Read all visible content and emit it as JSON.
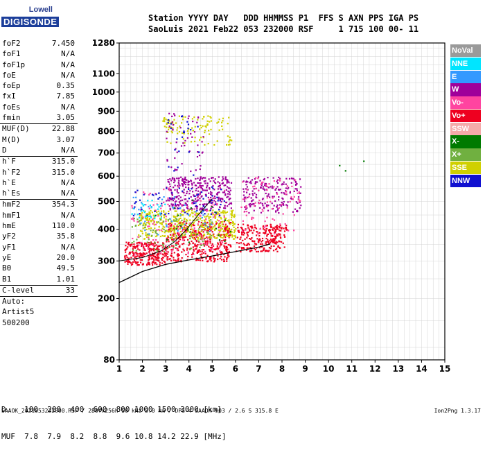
{
  "logo": {
    "line1": "Lowell",
    "line2": "DIGISONDE"
  },
  "header": {
    "row1": "Station YYYY DAY   DDD HHMMSS P1  FFS S AXN PPS IGA PS",
    "row2": "SaoLuis 2021 Feb22 053 232000 RSF     1 715 100 00- 11"
  },
  "params": [
    {
      "k": "foF2",
      "v": "7.450"
    },
    {
      "k": "foF1",
      "v": "N/A"
    },
    {
      "k": "foF1p",
      "v": "N/A"
    },
    {
      "k": "foE",
      "v": "N/A"
    },
    {
      "k": "foEp",
      "v": "0.35"
    },
    {
      "k": "fxI",
      "v": "7.85"
    },
    {
      "k": "foEs",
      "v": "N/A"
    },
    {
      "k": "fmin",
      "v": "3.05"
    },
    {
      "sep": true
    },
    {
      "k": "MUF(D)",
      "v": "22.88"
    },
    {
      "k": "M(D)",
      "v": "3.07"
    },
    {
      "k": "D",
      "v": "N/A"
    },
    {
      "sep": true
    },
    {
      "k": "h`F",
      "v": "315.0"
    },
    {
      "k": "h`F2",
      "v": "315.0"
    },
    {
      "k": "h`E",
      "v": "N/A"
    },
    {
      "k": "h`Es",
      "v": "N/A"
    },
    {
      "sep": true
    },
    {
      "k": "hmF2",
      "v": "354.3"
    },
    {
      "k": "hmF1",
      "v": "N/A"
    },
    {
      "k": "hmE",
      "v": "110.0"
    },
    {
      "k": "yF2",
      "v": "35.8"
    },
    {
      "k": "yF1",
      "v": "N/A"
    },
    {
      "k": "yE",
      "v": "20.0"
    },
    {
      "k": "B0",
      "v": "49.5"
    },
    {
      "k": "B1",
      "v": "1.01"
    },
    {
      "sep": true
    },
    {
      "k": "C-level",
      "v": "33"
    },
    {
      "sep": true
    },
    {
      "k": "Auto:",
      "v": ""
    },
    {
      "k": "Artist5",
      "v": ""
    },
    {
      "k": "500200",
      "v": ""
    }
  ],
  "legend": [
    {
      "label": "NoVal",
      "color": "#9a9a9a"
    },
    {
      "label": "NNE",
      "color": "#00e5ff"
    },
    {
      "label": "E",
      "color": "#3399ff"
    },
    {
      "label": "W",
      "color": "#a0009a"
    },
    {
      "label": "Vo-",
      "color": "#ff44a0"
    },
    {
      "label": "Vo+",
      "color": "#ee0020"
    },
    {
      "label": "SSW",
      "color": "#f5aaaa"
    },
    {
      "label": "X-",
      "color": "#007a00"
    },
    {
      "label": "X+",
      "color": "#70b040"
    },
    {
      "label": "SSE",
      "color": "#d0d000"
    },
    {
      "label": "NNW",
      "color": "#1010d0"
    }
  ],
  "muf_table": {
    "row_d": "D    100  200  400  600  800 1000 1500 3000 [km]",
    "row_muf": "MUF  7.8  7.9  8.2  8.8  9.6 10.8 14.2 22.9 [MHz]"
  },
  "footer": "SAAOK_2021053232000.RSF / 280fx256h 50 kHz 5.0 km / DPS-4 SAAOK 903 / 2.6 S 315.8 E",
  "version": "Ion2Png 1.3.17",
  "chart_data": {
    "type": "scatter",
    "title": "",
    "xlabel": "",
    "ylabel": "",
    "xlim": [
      1,
      15
    ],
    "ylim": [
      80,
      1280
    ],
    "xticks": [
      1,
      2,
      3,
      4,
      5,
      6,
      7,
      8,
      9,
      10,
      11,
      12,
      13,
      14,
      15
    ],
    "yticks": [
      80,
      200,
      300,
      400,
      500,
      600,
      700,
      800,
      900,
      1000,
      1100,
      1280
    ],
    "y_scale": "square-root (virtual height)",
    "grid": true,
    "legend_position": "right",
    "series": [
      {
        "name": "Vo+",
        "color": "#ee0020",
        "clusters": [
          {
            "x": [
              1.2,
              3.0
            ],
            "y": [
              290,
              360
            ],
            "n": 260
          },
          {
            "x": [
              3.0,
              5.8
            ],
            "y": [
              300,
              430
            ],
            "n": 420
          },
          {
            "x": [
              6.0,
              7.8
            ],
            "y": [
              330,
              420
            ],
            "n": 200
          },
          {
            "x": [
              7.5,
              8.2
            ],
            "y": [
              340,
              420
            ],
            "n": 60
          }
        ]
      },
      {
        "name": "SSE",
        "color": "#d0d000",
        "clusters": [
          {
            "x": [
              1.8,
              6.0
            ],
            "y": [
              370,
              470
            ],
            "n": 420
          },
          {
            "x": [
              3.0,
              5.8
            ],
            "y": [
              740,
              880
            ],
            "n": 90
          },
          {
            "x": [
              2.8,
              3.4
            ],
            "y": [
              820,
              870
            ],
            "n": 20
          }
        ]
      },
      {
        "name": "W",
        "color": "#a0009a",
        "clusters": [
          {
            "x": [
              3.0,
              5.8
            ],
            "y": [
              470,
              600
            ],
            "n": 330
          },
          {
            "x": [
              6.3,
              8.8
            ],
            "y": [
              460,
              600
            ],
            "n": 200
          },
          {
            "x": [
              3.0,
              4.6
            ],
            "y": [
              620,
              900
            ],
            "n": 50
          }
        ]
      },
      {
        "name": "Vo-",
        "color": "#ff44a0",
        "clusters": [
          {
            "x": [
              1.5,
              5.5
            ],
            "y": [
              320,
              560
            ],
            "n": 140
          },
          {
            "x": [
              6.2,
              8.8
            ],
            "y": [
              380,
              600
            ],
            "n": 80
          }
        ]
      },
      {
        "name": "NNW",
        "color": "#1010d0",
        "clusters": [
          {
            "x": [
              1.5,
              5.5
            ],
            "y": [
              450,
              560
            ],
            "n": 70
          },
          {
            "x": [
              3.0,
              4.5
            ],
            "y": [
              600,
              900
            ],
            "n": 25
          }
        ]
      },
      {
        "name": "X+",
        "color": "#70b040",
        "clusters": [
          {
            "x": [
              1.5,
              5.0
            ],
            "y": [
              330,
              440
            ],
            "n": 90
          }
        ]
      },
      {
        "name": "NNE",
        "color": "#00e5ff",
        "clusters": [
          {
            "x": [
              1.5,
              3.0
            ],
            "y": [
              440,
              510
            ],
            "n": 30
          }
        ]
      },
      {
        "name": "E",
        "color": "#3399ff",
        "clusters": [
          {
            "x": [
              1.5,
              5.0
            ],
            "y": [
              380,
              520
            ],
            "n": 40
          }
        ]
      },
      {
        "name": "X-",
        "color": "#007a00",
        "clusters": [
          {
            "x": [
              2.5,
              6.0
            ],
            "y": [
              350,
              520
            ],
            "n": 20
          },
          {
            "x": [
              10.4,
              11.5
            ],
            "y": [
              600,
              700
            ],
            "n": 3
          }
        ]
      }
    ],
    "profile_line": {
      "x": [
        1.0,
        2.0,
        3.0,
        4.0,
        5.0,
        6.0,
        7.0,
        7.5
      ],
      "y": [
        240,
        270,
        290,
        303,
        315,
        328,
        342,
        352
      ]
    },
    "trace_curve": {
      "x": [
        1.0,
        2.0,
        2.8,
        3.4,
        3.9,
        4.3,
        4.7,
        5.0
      ],
      "y": [
        300,
        310,
        330,
        360,
        400,
        440,
        480,
        510
      ]
    }
  }
}
